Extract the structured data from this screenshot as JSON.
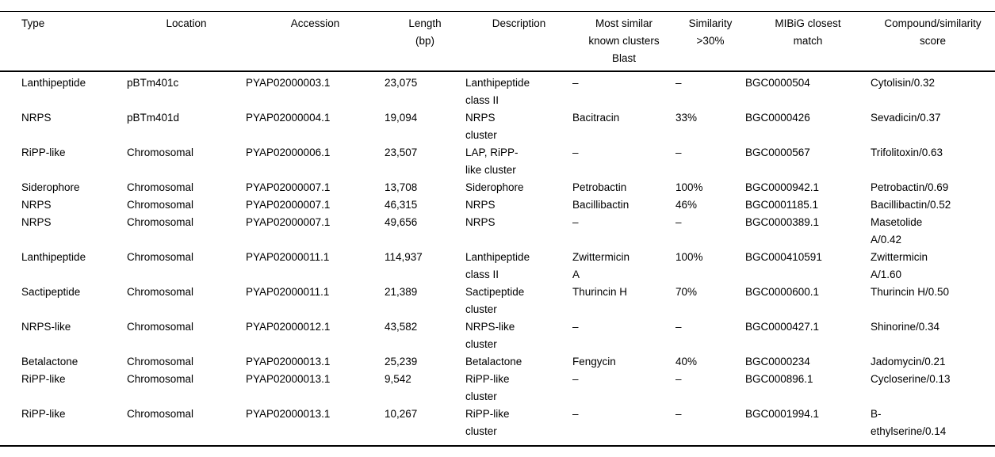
{
  "colors": {
    "background": "#ffffff",
    "text": "#000000",
    "rule": "#000000"
  },
  "table": {
    "columns": [
      {
        "id": "type",
        "label": "Type"
      },
      {
        "id": "location",
        "label": "Location"
      },
      {
        "id": "accession",
        "label": "Accession"
      },
      {
        "id": "length-bp",
        "label": "Length\n(bp)"
      },
      {
        "id": "description",
        "label": "Description"
      },
      {
        "id": "most-similar-known-clusters-blast",
        "label": "Most similar\nknown clusters\nBlast"
      },
      {
        "id": "similarity-over-30pct",
        "label": "Similarity\n>30%"
      },
      {
        "id": "mibig-closest-match",
        "label": "MIBiG closest\nmatch"
      },
      {
        "id": "compound-similarity-score",
        "label": "Compound/similarity\nscore"
      }
    ],
    "rows": [
      {
        "cells": [
          "Lanthipeptide",
          "pBTm401c",
          "PYAP02000003.1",
          "23,075",
          "Lanthipeptide\nclass II",
          "–",
          "–",
          "BGC0000504",
          "Cytolisin/0.32"
        ]
      },
      {
        "cells": [
          "NRPS",
          "pBTm401d",
          "PYAP02000004.1",
          "19,094",
          "NRPS\ncluster",
          "Bacitracin",
          "33%",
          "BGC0000426",
          "Sevadicin/0.37"
        ]
      },
      {
        "cells": [
          "RiPP-like",
          "Chromosomal",
          "PYAP02000006.1",
          "23,507",
          "LAP, RiPP-\nlike cluster",
          "–",
          "–",
          "BGC0000567",
          "Trifolitoxin/0.63"
        ]
      },
      {
        "cells": [
          "Siderophore",
          "Chromosomal",
          "PYAP02000007.1",
          "13,708",
          "Siderophore",
          "Petrobactin",
          "100%",
          "BGC0000942.1",
          "Petrobactin/0.69"
        ]
      },
      {
        "cells": [
          "NRPS",
          "Chromosomal",
          "PYAP02000007.1",
          "46,315",
          "NRPS",
          "Bacillibactin",
          "46%",
          "BGC0001185.1",
          "Bacillibactin/0.52"
        ]
      },
      {
        "cells": [
          "NRPS",
          "Chromosomal",
          "PYAP02000007.1",
          "49,656",
          "NRPS",
          "–",
          "–",
          "BGC0000389.1",
          "Masetolide\nA/0.42"
        ]
      },
      {
        "cells": [
          "Lanthipeptide",
          "Chromosomal",
          "PYAP02000011.1",
          "114,937",
          "Lanthipeptide\nclass II",
          "Zwittermicin\nA",
          "100%",
          "BGC000410591",
          "Zwittermicin\nA/1.60"
        ]
      },
      {
        "cells": [
          "Sactipeptide",
          "Chromosomal",
          "PYAP02000011.1",
          "21,389",
          "Sactipeptide\ncluster",
          "Thurincin H",
          "70%",
          "BGC0000600.1",
          "Thurincin H/0.50"
        ]
      },
      {
        "cells": [
          "NRPS-like",
          "Chromosomal",
          "PYAP02000012.1",
          "43,582",
          "NRPS-like\ncluster",
          "–",
          "–",
          "BGC0000427.1",
          "Shinorine/0.34"
        ]
      },
      {
        "cells": [
          "Betalactone",
          "Chromosomal",
          "PYAP02000013.1",
          "25,239",
          "Betalactone",
          "Fengycin",
          "40%",
          "BGC0000234",
          "Jadomycin/0.21"
        ]
      },
      {
        "cells": [
          "RiPP-like",
          "Chromosomal",
          "PYAP02000013.1",
          "9,542",
          "RiPP-like\ncluster",
          "–",
          "–",
          "BGC000896.1",
          "Cycloserine/0.13"
        ]
      },
      {
        "cells": [
          "RiPP-like",
          "Chromosomal",
          "PYAP02000013.1",
          "10,267",
          "RiPP-like\ncluster",
          "–",
          "–",
          "BGC0001994.1",
          "B-\nethylserine/0.14"
        ]
      }
    ]
  }
}
